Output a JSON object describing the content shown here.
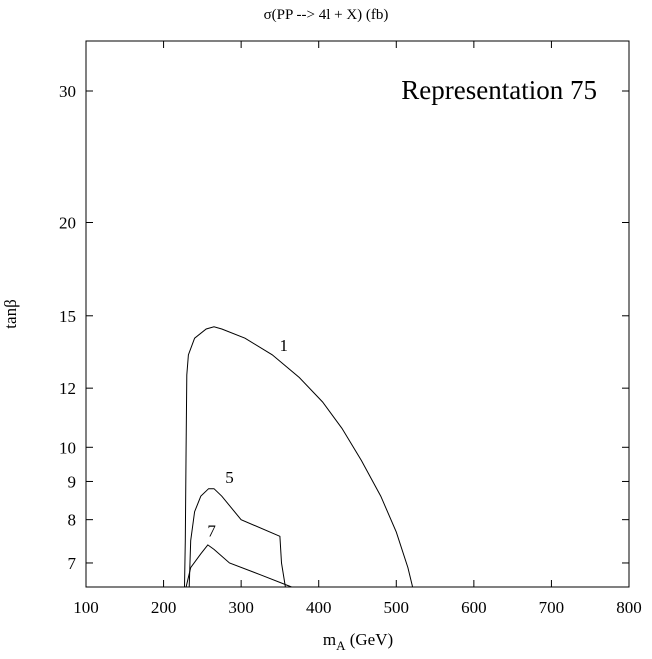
{
  "chart_data": {
    "type": "line",
    "title": "σ(PP --> 4l + X) (fb)",
    "xlabel": "m",
    "xlabel_sub": "A",
    "xlabel_unit": " (GeV)",
    "ylabel": "tanβ",
    "xlim": [
      100,
      800
    ],
    "ylim": [
      6.5,
      35
    ],
    "y_scale": "log",
    "grid": false,
    "x_ticks": [
      100,
      200,
      300,
      400,
      500,
      600,
      700,
      800
    ],
    "x_tick_labels": [
      "100",
      "200",
      "300",
      "400",
      "500",
      "600",
      "700",
      "800"
    ],
    "y_ticks": [
      7,
      8,
      9,
      10,
      12,
      15,
      20,
      30
    ],
    "y_tick_labels": [
      "7",
      "8",
      "9",
      "10",
      "12",
      "15",
      "20",
      "30"
    ],
    "annotation": "Representation 75",
    "series": [
      {
        "contour_label": "1",
        "label_at": [
          355,
          13.3
        ],
        "points": [
          [
            227,
            6.5
          ],
          [
            228,
            7.5
          ],
          [
            229,
            10
          ],
          [
            230,
            12.5
          ],
          [
            232,
            13.3
          ],
          [
            240,
            14.0
          ],
          [
            255,
            14.4
          ],
          [
            265,
            14.5
          ],
          [
            275,
            14.4
          ],
          [
            305,
            14.0
          ],
          [
            340,
            13.3
          ],
          [
            375,
            12.4
          ],
          [
            405,
            11.5
          ],
          [
            430,
            10.6
          ],
          [
            455,
            9.6
          ],
          [
            480,
            8.6
          ],
          [
            500,
            7.7
          ],
          [
            515,
            6.9
          ],
          [
            521,
            6.5
          ]
        ]
      },
      {
        "contour_label": "5",
        "label_at": [
          285,
          8.85
        ],
        "points": [
          [
            233,
            6.5
          ],
          [
            235,
            7.5
          ],
          [
            240,
            8.2
          ],
          [
            248,
            8.6
          ],
          [
            258,
            8.8
          ],
          [
            265,
            8.8
          ],
          [
            275,
            8.6
          ],
          [
            300,
            8.0
          ],
          [
            350,
            7.6
          ],
          [
            352,
            7.0
          ],
          [
            357,
            6.5
          ]
        ]
      },
      {
        "contour_label": "7",
        "label_at": [
          262,
          7.5
        ],
        "points": [
          [
            229,
            6.5
          ],
          [
            235,
            6.9
          ],
          [
            248,
            7.2
          ],
          [
            257,
            7.4
          ],
          [
            265,
            7.3
          ],
          [
            285,
            7.0
          ],
          [
            325,
            6.75
          ],
          [
            365,
            6.5
          ]
        ]
      }
    ]
  }
}
